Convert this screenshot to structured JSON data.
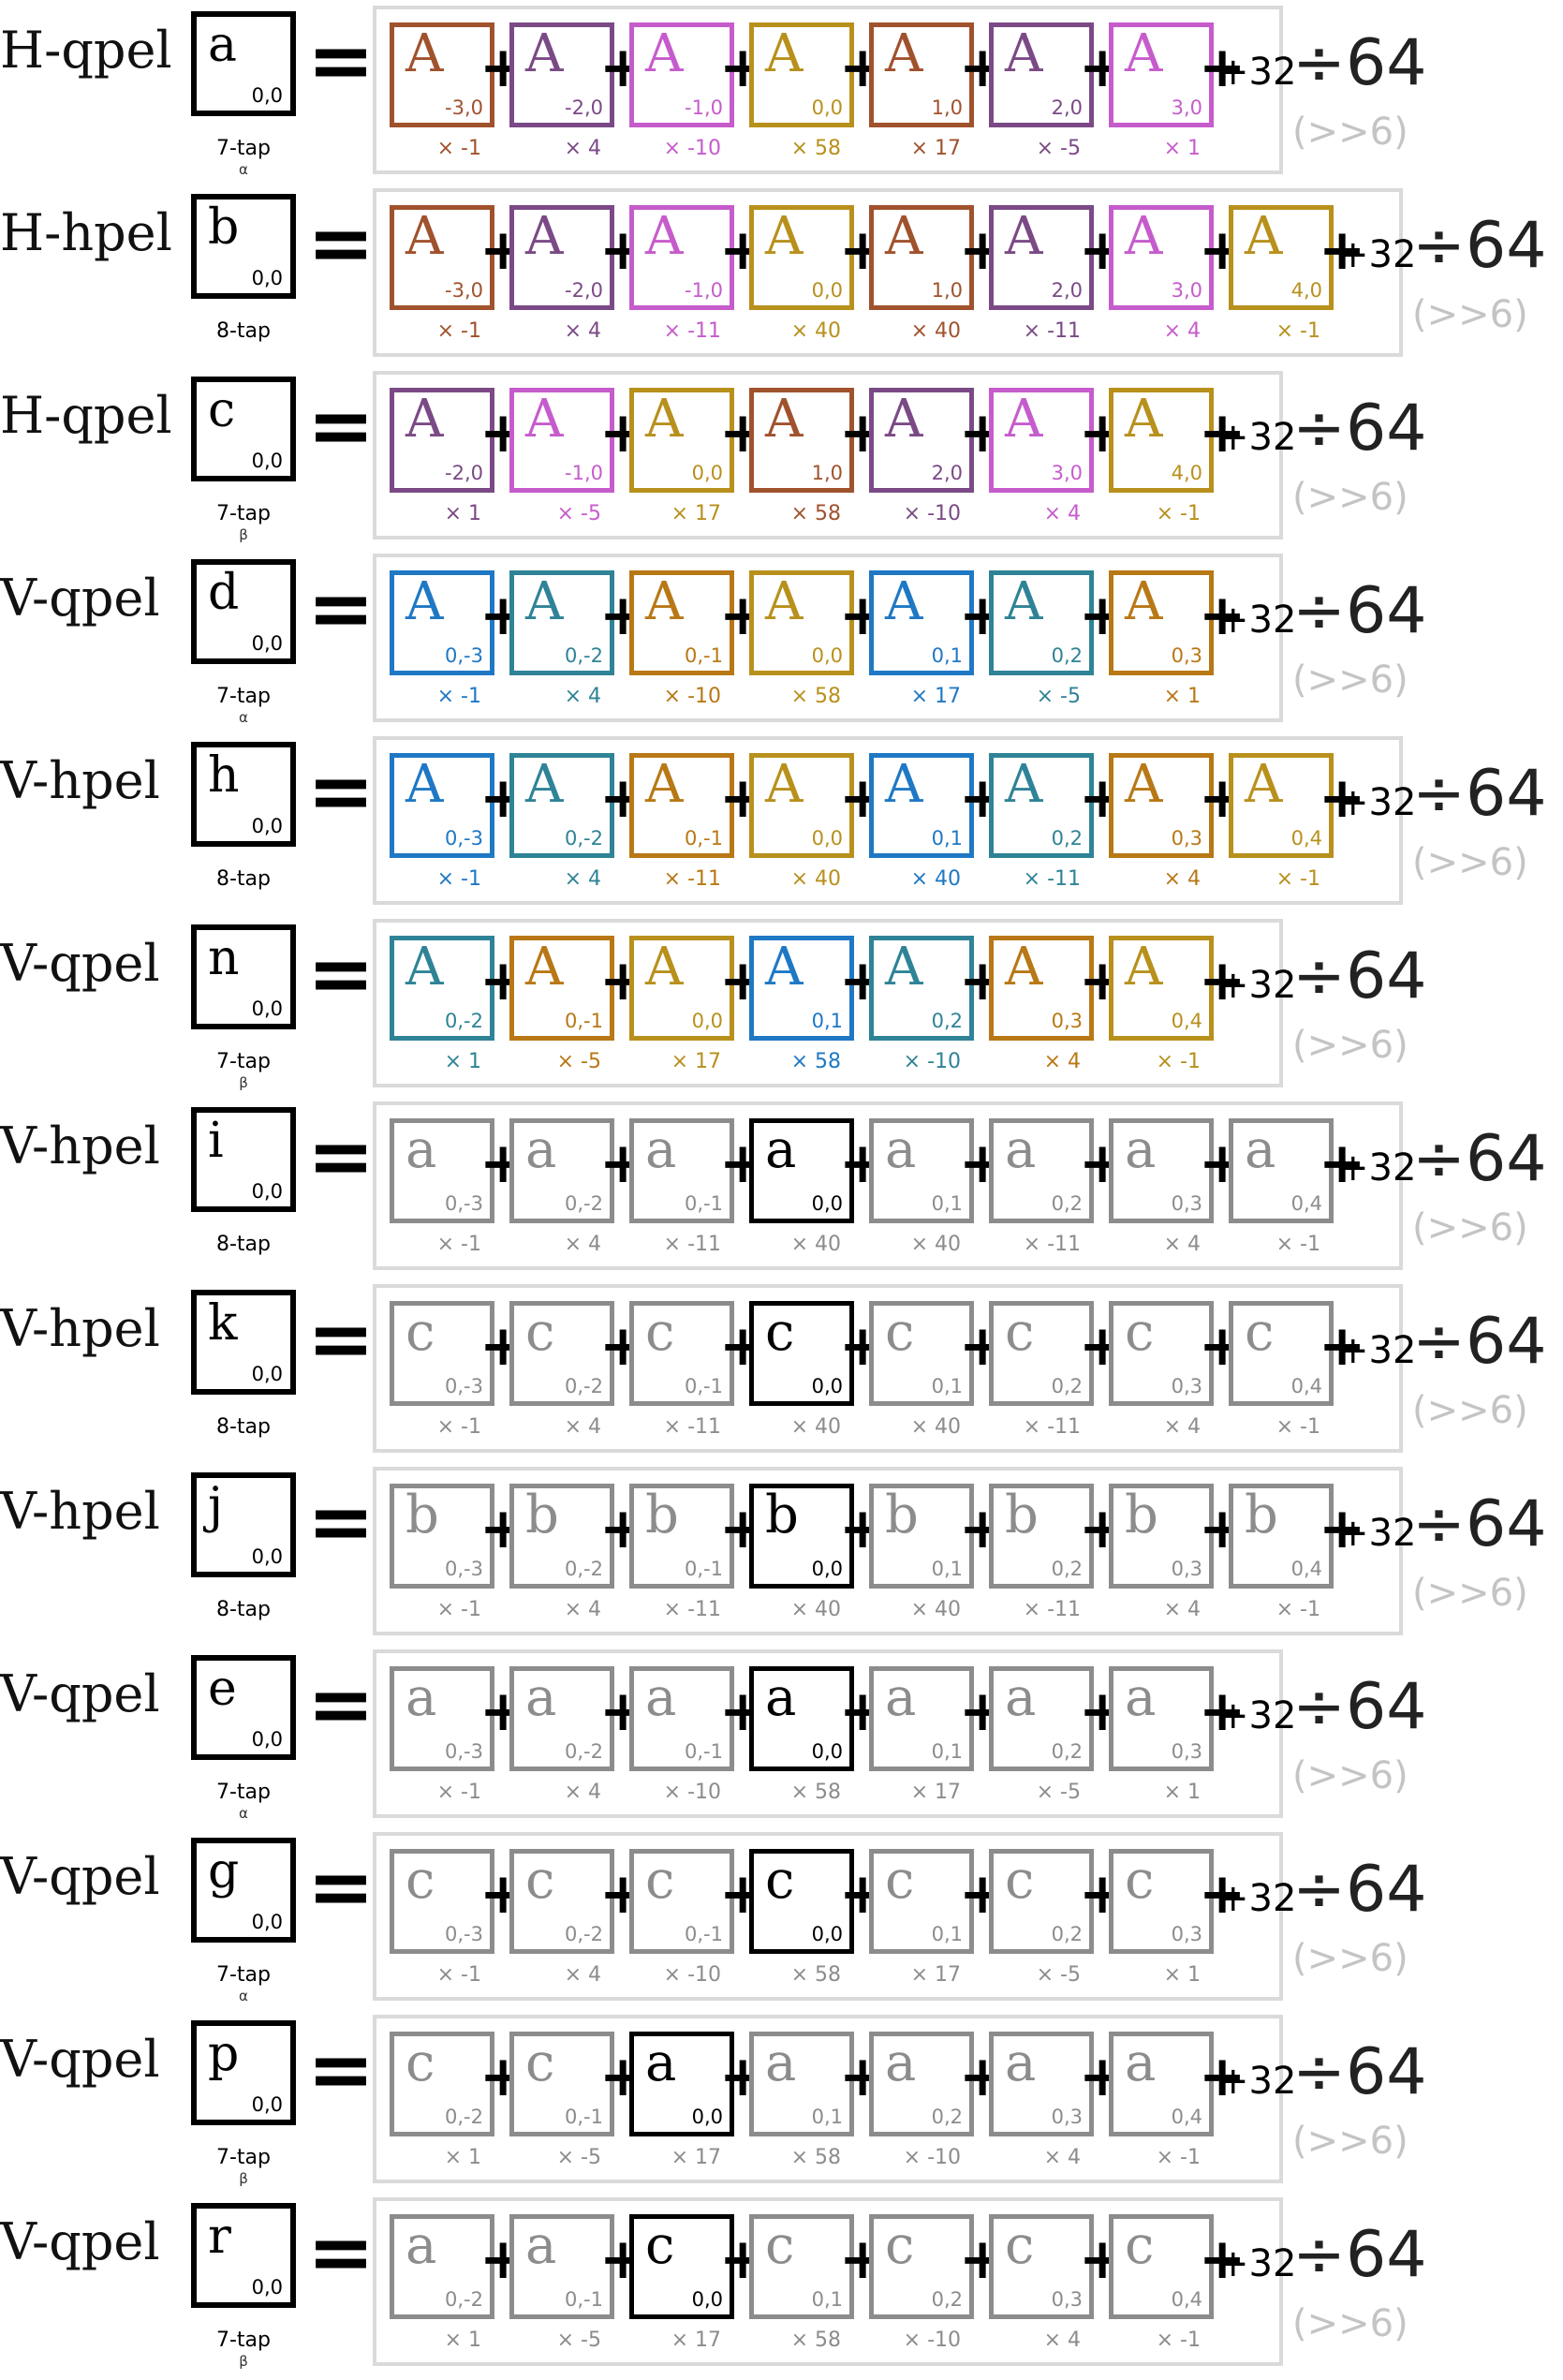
{
  "colors": {
    "brown": "#a0522d",
    "purple": "#7b4a86",
    "magenta": "#c65ccc",
    "gold": "#b8901c",
    "blue": "#1f78c4",
    "teal": "#2f8396",
    "amber": "#b87816",
    "gray": "#8c8c8c",
    "black": "#000000"
  },
  "rows": [
    {
      "label": "H-qpel",
      "out": "a",
      "out_sub": "0,0",
      "tap": "7-tap",
      "greek": "α",
      "const": "+32",
      "div": "÷64",
      "shift": "(>>6)",
      "terms": [
        {
          "sym": "A",
          "coord": "-3,0",
          "coef": "× -1",
          "color": "brown"
        },
        {
          "sym": "A",
          "coord": "-2,0",
          "coef": "× 4",
          "color": "purple"
        },
        {
          "sym": "A",
          "coord": "-1,0",
          "coef": "× -10",
          "color": "magenta"
        },
        {
          "sym": "A",
          "coord": "0,0",
          "coef": "× 58",
          "color": "gold"
        },
        {
          "sym": "A",
          "coord": "1,0",
          "coef": "× 17",
          "color": "brown"
        },
        {
          "sym": "A",
          "coord": "2,0",
          "coef": "× -5",
          "color": "purple"
        },
        {
          "sym": "A",
          "coord": "3,0",
          "coef": "× 1",
          "color": "magenta"
        }
      ]
    },
    {
      "label": "H-hpel",
      "out": "b",
      "out_sub": "0,0",
      "tap": "8-tap",
      "greek": "",
      "const": "+32",
      "div": "÷64",
      "shift": "(>>6)",
      "terms": [
        {
          "sym": "A",
          "coord": "-3,0",
          "coef": "× -1",
          "color": "brown"
        },
        {
          "sym": "A",
          "coord": "-2,0",
          "coef": "× 4",
          "color": "purple"
        },
        {
          "sym": "A",
          "coord": "-1,0",
          "coef": "× -11",
          "color": "magenta"
        },
        {
          "sym": "A",
          "coord": "0,0",
          "coef": "× 40",
          "color": "gold"
        },
        {
          "sym": "A",
          "coord": "1,0",
          "coef": "× 40",
          "color": "brown"
        },
        {
          "sym": "A",
          "coord": "2,0",
          "coef": "× -11",
          "color": "purple"
        },
        {
          "sym": "A",
          "coord": "3,0",
          "coef": "× 4",
          "color": "magenta"
        },
        {
          "sym": "A",
          "coord": "4,0",
          "coef": "× -1",
          "color": "gold"
        }
      ]
    },
    {
      "label": "H-qpel",
      "out": "c",
      "out_sub": "0,0",
      "tap": "7-tap",
      "greek": "β",
      "const": "+32",
      "div": "÷64",
      "shift": "(>>6)",
      "terms": [
        {
          "sym": "A",
          "coord": "-2,0",
          "coef": "× 1",
          "color": "purple"
        },
        {
          "sym": "A",
          "coord": "-1,0",
          "coef": "× -5",
          "color": "magenta"
        },
        {
          "sym": "A",
          "coord": "0,0",
          "coef": "× 17",
          "color": "gold"
        },
        {
          "sym": "A",
          "coord": "1,0",
          "coef": "× 58",
          "color": "brown"
        },
        {
          "sym": "A",
          "coord": "2,0",
          "coef": "× -10",
          "color": "purple"
        },
        {
          "sym": "A",
          "coord": "3,0",
          "coef": "× 4",
          "color": "magenta"
        },
        {
          "sym": "A",
          "coord": "4,0",
          "coef": "× -1",
          "color": "gold"
        }
      ]
    },
    {
      "label": "V-qpel",
      "out": "d",
      "out_sub": "0,0",
      "tap": "7-tap",
      "greek": "α",
      "const": "+32",
      "div": "÷64",
      "shift": "(>>6)",
      "terms": [
        {
          "sym": "A",
          "coord": "0,-3",
          "coef": "× -1",
          "color": "blue"
        },
        {
          "sym": "A",
          "coord": "0,-2",
          "coef": "× 4",
          "color": "teal"
        },
        {
          "sym": "A",
          "coord": "0,-1",
          "coef": "× -10",
          "color": "amber"
        },
        {
          "sym": "A",
          "coord": "0,0",
          "coef": "× 58",
          "color": "gold"
        },
        {
          "sym": "A",
          "coord": "0,1",
          "coef": "× 17",
          "color": "blue"
        },
        {
          "sym": "A",
          "coord": "0,2",
          "coef": "× -5",
          "color": "teal"
        },
        {
          "sym": "A",
          "coord": "0,3",
          "coef": "× 1",
          "color": "amber"
        }
      ]
    },
    {
      "label": "V-hpel",
      "out": "h",
      "out_sub": "0,0",
      "tap": "8-tap",
      "greek": "",
      "const": "+32",
      "div": "÷64",
      "shift": "(>>6)",
      "terms": [
        {
          "sym": "A",
          "coord": "0,-3",
          "coef": "× -1",
          "color": "blue"
        },
        {
          "sym": "A",
          "coord": "0,-2",
          "coef": "× 4",
          "color": "teal"
        },
        {
          "sym": "A",
          "coord": "0,-1",
          "coef": "× -11",
          "color": "amber"
        },
        {
          "sym": "A",
          "coord": "0,0",
          "coef": "× 40",
          "color": "gold"
        },
        {
          "sym": "A",
          "coord": "0,1",
          "coef": "× 40",
          "color": "blue"
        },
        {
          "sym": "A",
          "coord": "0,2",
          "coef": "× -11",
          "color": "teal"
        },
        {
          "sym": "A",
          "coord": "0,3",
          "coef": "× 4",
          "color": "amber"
        },
        {
          "sym": "A",
          "coord": "0,4",
          "coef": "× -1",
          "color": "gold"
        }
      ]
    },
    {
      "label": "V-qpel",
      "out": "n",
      "out_sub": "0,0",
      "tap": "7-tap",
      "greek": "β",
      "const": "+32",
      "div": "÷64",
      "shift": "(>>6)",
      "terms": [
        {
          "sym": "A",
          "coord": "0,-2",
          "coef": "× 1",
          "color": "teal"
        },
        {
          "sym": "A",
          "coord": "0,-1",
          "coef": "× -5",
          "color": "amber"
        },
        {
          "sym": "A",
          "coord": "0,0",
          "coef": "× 17",
          "color": "gold"
        },
        {
          "sym": "A",
          "coord": "0,1",
          "coef": "× 58",
          "color": "blue"
        },
        {
          "sym": "A",
          "coord": "0,2",
          "coef": "× -10",
          "color": "teal"
        },
        {
          "sym": "A",
          "coord": "0,3",
          "coef": "× 4",
          "color": "amber"
        },
        {
          "sym": "A",
          "coord": "0,4",
          "coef": "× -1",
          "color": "gold"
        }
      ]
    },
    {
      "label": "V-hpel",
      "out": "i",
      "out_sub": "0,0",
      "tap": "8-tap",
      "greek": "",
      "const": "+32",
      "div": "÷64",
      "shift": "(>>6)",
      "terms": [
        {
          "sym": "a",
          "coord": "0,-3",
          "coef": "× -1",
          "color": "gray"
        },
        {
          "sym": "a",
          "coord": "0,-2",
          "coef": "× 4",
          "color": "gray"
        },
        {
          "sym": "a",
          "coord": "0,-1",
          "coef": "× -11",
          "color": "gray"
        },
        {
          "sym": "a",
          "coord": "0,0",
          "coef": "× 40",
          "color": "black"
        },
        {
          "sym": "a",
          "coord": "0,1",
          "coef": "× 40",
          "color": "gray"
        },
        {
          "sym": "a",
          "coord": "0,2",
          "coef": "× -11",
          "color": "gray"
        },
        {
          "sym": "a",
          "coord": "0,3",
          "coef": "× 4",
          "color": "gray"
        },
        {
          "sym": "a",
          "coord": "0,4",
          "coef": "× -1",
          "color": "gray"
        }
      ]
    },
    {
      "label": "V-hpel",
      "out": "k",
      "out_sub": "0,0",
      "tap": "8-tap",
      "greek": "",
      "const": "+32",
      "div": "÷64",
      "shift": "(>>6)",
      "terms": [
        {
          "sym": "c",
          "coord": "0,-3",
          "coef": "× -1",
          "color": "gray"
        },
        {
          "sym": "c",
          "coord": "0,-2",
          "coef": "× 4",
          "color": "gray"
        },
        {
          "sym": "c",
          "coord": "0,-1",
          "coef": "× -11",
          "color": "gray"
        },
        {
          "sym": "c",
          "coord": "0,0",
          "coef": "× 40",
          "color": "black"
        },
        {
          "sym": "c",
          "coord": "0,1",
          "coef": "× 40",
          "color": "gray"
        },
        {
          "sym": "c",
          "coord": "0,2",
          "coef": "× -11",
          "color": "gray"
        },
        {
          "sym": "c",
          "coord": "0,3",
          "coef": "× 4",
          "color": "gray"
        },
        {
          "sym": "c",
          "coord": "0,4",
          "coef": "× -1",
          "color": "gray"
        }
      ]
    },
    {
      "label": "V-hpel",
      "out": "j",
      "out_sub": "0,0",
      "tap": "8-tap",
      "greek": "",
      "const": "+32",
      "div": "÷64",
      "shift": "(>>6)",
      "terms": [
        {
          "sym": "b",
          "coord": "0,-3",
          "coef": "× -1",
          "color": "gray"
        },
        {
          "sym": "b",
          "coord": "0,-2",
          "coef": "× 4",
          "color": "gray"
        },
        {
          "sym": "b",
          "coord": "0,-1",
          "coef": "× -11",
          "color": "gray"
        },
        {
          "sym": "b",
          "coord": "0,0",
          "coef": "× 40",
          "color": "black"
        },
        {
          "sym": "b",
          "coord": "0,1",
          "coef": "× 40",
          "color": "gray"
        },
        {
          "sym": "b",
          "coord": "0,2",
          "coef": "× -11",
          "color": "gray"
        },
        {
          "sym": "b",
          "coord": "0,3",
          "coef": "× 4",
          "color": "gray"
        },
        {
          "sym": "b",
          "coord": "0,4",
          "coef": "× -1",
          "color": "gray"
        }
      ]
    },
    {
      "label": "V-qpel",
      "out": "e",
      "out_sub": "0,0",
      "tap": "7-tap",
      "greek": "α",
      "const": "+32",
      "div": "÷64",
      "shift": "(>>6)",
      "terms": [
        {
          "sym": "a",
          "coord": "0,-3",
          "coef": "× -1",
          "color": "gray"
        },
        {
          "sym": "a",
          "coord": "0,-2",
          "coef": "× 4",
          "color": "gray"
        },
        {
          "sym": "a",
          "coord": "0,-1",
          "coef": "× -10",
          "color": "gray"
        },
        {
          "sym": "a",
          "coord": "0,0",
          "coef": "× 58",
          "color": "black"
        },
        {
          "sym": "a",
          "coord": "0,1",
          "coef": "× 17",
          "color": "gray"
        },
        {
          "sym": "a",
          "coord": "0,2",
          "coef": "× -5",
          "color": "gray"
        },
        {
          "sym": "a",
          "coord": "0,3",
          "coef": "× 1",
          "color": "gray"
        }
      ]
    },
    {
      "label": "V-qpel",
      "out": "g",
      "out_sub": "0,0",
      "tap": "7-tap",
      "greek": "α",
      "const": "+32",
      "div": "÷64",
      "shift": "(>>6)",
      "terms": [
        {
          "sym": "c",
          "coord": "0,-3",
          "coef": "× -1",
          "color": "gray"
        },
        {
          "sym": "c",
          "coord": "0,-2",
          "coef": "× 4",
          "color": "gray"
        },
        {
          "sym": "c",
          "coord": "0,-1",
          "coef": "× -10",
          "color": "gray"
        },
        {
          "sym": "c",
          "coord": "0,0",
          "coef": "× 58",
          "color": "black"
        },
        {
          "sym": "c",
          "coord": "0,1",
          "coef": "× 17",
          "color": "gray"
        },
        {
          "sym": "c",
          "coord": "0,2",
          "coef": "× -5",
          "color": "gray"
        },
        {
          "sym": "c",
          "coord": "0,3",
          "coef": "× 1",
          "color": "gray"
        }
      ]
    },
    {
      "label": "V-qpel",
      "out": "p",
      "out_sub": "0,0",
      "tap": "7-tap",
      "greek": "β",
      "const": "+32",
      "div": "÷64",
      "shift": "(>>6)",
      "terms": [
        {
          "sym": "c",
          "coord": "0,-2",
          "coef": "× 1",
          "color": "gray"
        },
        {
          "sym": "c",
          "coord": "0,-1",
          "coef": "× -5",
          "color": "gray"
        },
        {
          "sym": "a",
          "coord": "0,0",
          "coef": "× 17",
          "color": "black"
        },
        {
          "sym": "a",
          "coord": "0,1",
          "coef": "× 58",
          "color": "gray"
        },
        {
          "sym": "a",
          "coord": "0,2",
          "coef": "× -10",
          "color": "gray"
        },
        {
          "sym": "a",
          "coord": "0,3",
          "coef": "× 4",
          "color": "gray"
        },
        {
          "sym": "a",
          "coord": "0,4",
          "coef": "× -1",
          "color": "gray"
        }
      ]
    },
    {
      "label": "V-qpel",
      "out": "r",
      "out_sub": "0,0",
      "tap": "7-tap",
      "greek": "β",
      "const": "+32",
      "div": "÷64",
      "shift": "(>>6)",
      "terms": [
        {
          "sym": "a",
          "coord": "0,-2",
          "coef": "× 1",
          "color": "gray"
        },
        {
          "sym": "a",
          "coord": "0,-1",
          "coef": "× -5",
          "color": "gray"
        },
        {
          "sym": "c",
          "coord": "0,0",
          "coef": "× 17",
          "color": "black"
        },
        {
          "sym": "c",
          "coord": "0,1",
          "coef": "× 58",
          "color": "gray"
        },
        {
          "sym": "c",
          "coord": "0,2",
          "coef": "× -10",
          "color": "gray"
        },
        {
          "sym": "c",
          "coord": "0,3",
          "coef": "× 4",
          "color": "gray"
        },
        {
          "sym": "c",
          "coord": "0,4",
          "coef": "× -1",
          "color": "gray"
        }
      ]
    }
  ]
}
